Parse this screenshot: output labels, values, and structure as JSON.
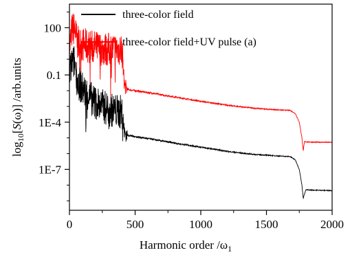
{
  "chart_data": {
    "type": "line",
    "title": "",
    "xlabel": "Harmonic order /ω",
    "xlabel_subscript": "1",
    "ylabel_parts": {
      "log": "log",
      "base": "10",
      "open": "[",
      "s": "S",
      "arg": "(ω)",
      "rest": "] /arb.units"
    },
    "xlim": [
      0,
      2000
    ],
    "ylim_log10": [
      -9.6,
      3.5
    ],
    "yscale": "log",
    "grid": false,
    "legend_position": "top-right",
    "x_ticks": [
      {
        "value": 0,
        "label": "0"
      },
      {
        "value": 500,
        "label": "500"
      },
      {
        "value": 1000,
        "label": "1000"
      },
      {
        "value": 1500,
        "label": "1500"
      },
      {
        "value": 2000,
        "label": "2000"
      }
    ],
    "y_ticks": [
      {
        "value": 100,
        "label": "100"
      },
      {
        "value": 0.1,
        "label": "0.1"
      },
      {
        "value": 0.0001,
        "label": "1E-4"
      },
      {
        "value": 1e-07,
        "label": "1E-7"
      }
    ],
    "series": [
      {
        "name": "three-color field",
        "color": "#000000",
        "points": [
          [
            0,
            0.05
          ],
          [
            20,
            0.3
          ],
          [
            40,
            0.3
          ],
          [
            60,
            0.02
          ],
          [
            100,
            0.006
          ],
          [
            150,
            0.002
          ],
          [
            200,
            0.0008
          ],
          [
            250,
            0.0005
          ],
          [
            300,
            0.0003
          ],
          [
            350,
            0.00025
          ],
          [
            400,
            0.0002
          ],
          [
            420,
            2e-05
          ],
          [
            440,
            1.5e-05
          ],
          [
            500,
            1.2e-05
          ],
          [
            600,
            9e-06
          ],
          [
            700,
            6.5e-06
          ],
          [
            800,
            4.7e-06
          ],
          [
            900,
            3.5e-06
          ],
          [
            1000,
            2.6e-06
          ],
          [
            1100,
            1.9e-06
          ],
          [
            1200,
            1.4e-06
          ],
          [
            1300,
            1.1e-06
          ],
          [
            1400,
            9e-07
          ],
          [
            1500,
            8e-07
          ],
          [
            1600,
            7e-07
          ],
          [
            1680,
            6.5e-07
          ],
          [
            1720,
            4e-07
          ],
          [
            1750,
            1e-07
          ],
          [
            1770,
            1e-08
          ],
          [
            1780,
            1.5e-09
          ],
          [
            1800,
            5e-09
          ],
          [
            1900,
            4.7e-09
          ],
          [
            2000,
            4.5e-09
          ]
        ]
      },
      {
        "name": "three-color field+UV pulse (a)",
        "color": "#ff0000",
        "points": [
          [
            0,
            2
          ],
          [
            20,
            40
          ],
          [
            40,
            40
          ],
          [
            60,
            5
          ],
          [
            100,
            4
          ],
          [
            150,
            3
          ],
          [
            200,
            2.5
          ],
          [
            250,
            2
          ],
          [
            300,
            2
          ],
          [
            350,
            2
          ],
          [
            400,
            2
          ],
          [
            420,
            0.02
          ],
          [
            440,
            0.012
          ],
          [
            500,
            0.01
          ],
          [
            600,
            0.0075
          ],
          [
            700,
            0.0055
          ],
          [
            800,
            0.004
          ],
          [
            900,
            0.0029
          ],
          [
            1000,
            0.0021
          ],
          [
            1100,
            0.0016
          ],
          [
            1200,
            0.0012
          ],
          [
            1300,
            0.00095
          ],
          [
            1400,
            0.00078
          ],
          [
            1500,
            0.00067
          ],
          [
            1600,
            0.0006
          ],
          [
            1680,
            0.00056
          ],
          [
            1720,
            0.00035
          ],
          [
            1750,
            0.0001
          ],
          [
            1770,
            1e-05
          ],
          [
            1780,
            1.5e-06
          ],
          [
            1790,
            6e-06
          ],
          [
            1800,
            5.5e-06
          ],
          [
            1900,
            5.3e-06
          ],
          [
            2000,
            5.2e-06
          ]
        ]
      }
    ]
  }
}
